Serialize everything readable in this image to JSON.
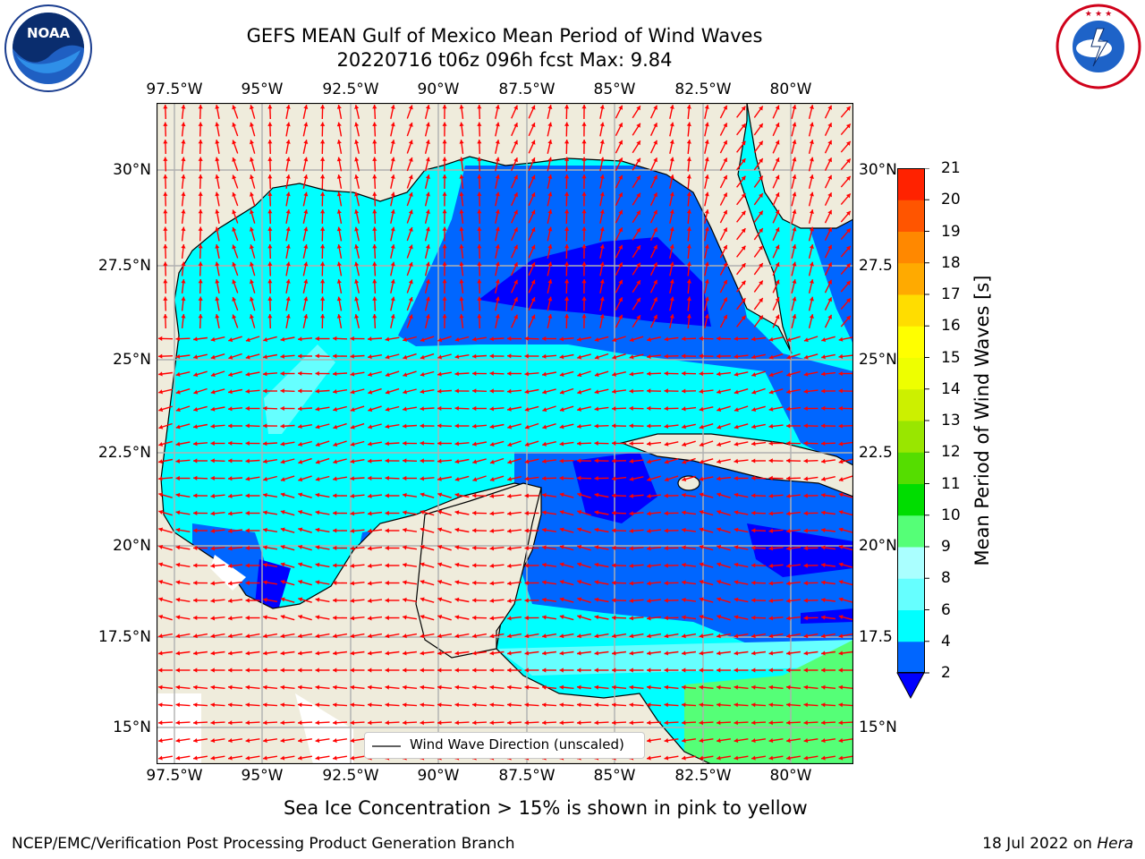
{
  "header": {
    "title_line1": "GEFS MEAN Gulf of Mexico Mean Period of Wind Waves",
    "title_line2": "20220716 t06z 096h fcst   Max: 9.84"
  },
  "logos": {
    "left": {
      "name": "noaa-logo",
      "text": "NOAA",
      "ring_text": "NATIONAL OCEANIC AND ATMOSPHERIC ADMINISTRATION · U.S. DEPARTMENT OF COMMERCE"
    },
    "right": {
      "name": "nws-logo",
      "ring_text": "NATIONAL WEATHER SERVICE"
    }
  },
  "map": {
    "lon_ticks": [
      "97.5°W",
      "95°W",
      "92.5°W",
      "90°W",
      "87.5°W",
      "85°W",
      "82.5°W",
      "80°W"
    ],
    "lat_ticks_left": [
      "30°N",
      "27.5°N",
      "25°N",
      "22.5°N",
      "20°N",
      "17.5°N",
      "15°N"
    ],
    "lat_ticks_right": [
      "30°N",
      "27.5",
      "25°N",
      "22.5",
      "20°N",
      "17.5",
      "15°N"
    ],
    "legend_label": "Wind Wave Direction (unscaled)",
    "colors": {
      "land": "#efecdc",
      "arrow": "#ff0000",
      "grid": "#b0b0b0"
    }
  },
  "colorbar": {
    "label": "Mean Period of Wind Waves [s]",
    "levels": [
      "2",
      "4",
      "6",
      "8",
      "9",
      "10",
      "11",
      "12",
      "13",
      "14",
      "15",
      "16",
      "17",
      "18",
      "19",
      "20",
      "21"
    ],
    "colors": [
      "#0066ff",
      "#00ffff",
      "#66ffff",
      "#aaffff",
      "#55ff77",
      "#00dd00",
      "#55dd00",
      "#99e600",
      "#ccf000",
      "#eeff00",
      "#ffff00",
      "#ffdd00",
      "#ffaa00",
      "#ff8800",
      "#ff5500",
      "#ff2200",
      "#ff0000"
    ],
    "under_color": "#0000ff"
  },
  "subtitle": "Sea Ice Concentration > 15% is shown in pink to yellow",
  "footer": {
    "left": "NCEP/EMC/Verification Post Processing Product Generation Branch",
    "date": "18 Jul 2022 on ",
    "machine": "Hera"
  }
}
